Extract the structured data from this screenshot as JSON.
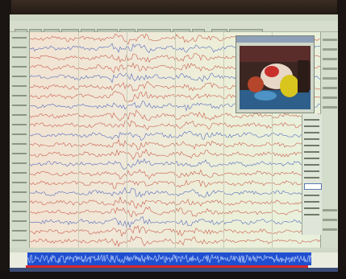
{
  "app": {
    "title": "",
    "toolbar": {
      "labels": []
    }
  },
  "channel_labels": [],
  "video_window": {
    "title": ""
  },
  "side_panel": {
    "field_value": ""
  },
  "status": {
    "text": ""
  },
  "colors": {
    "trace_red": "#c0392b",
    "trace_blue": "#2e4bb8",
    "overview_blue": "#1f4fd0",
    "marker_red": "#d9262a"
  },
  "icons": [
    "video-icon"
  ]
}
